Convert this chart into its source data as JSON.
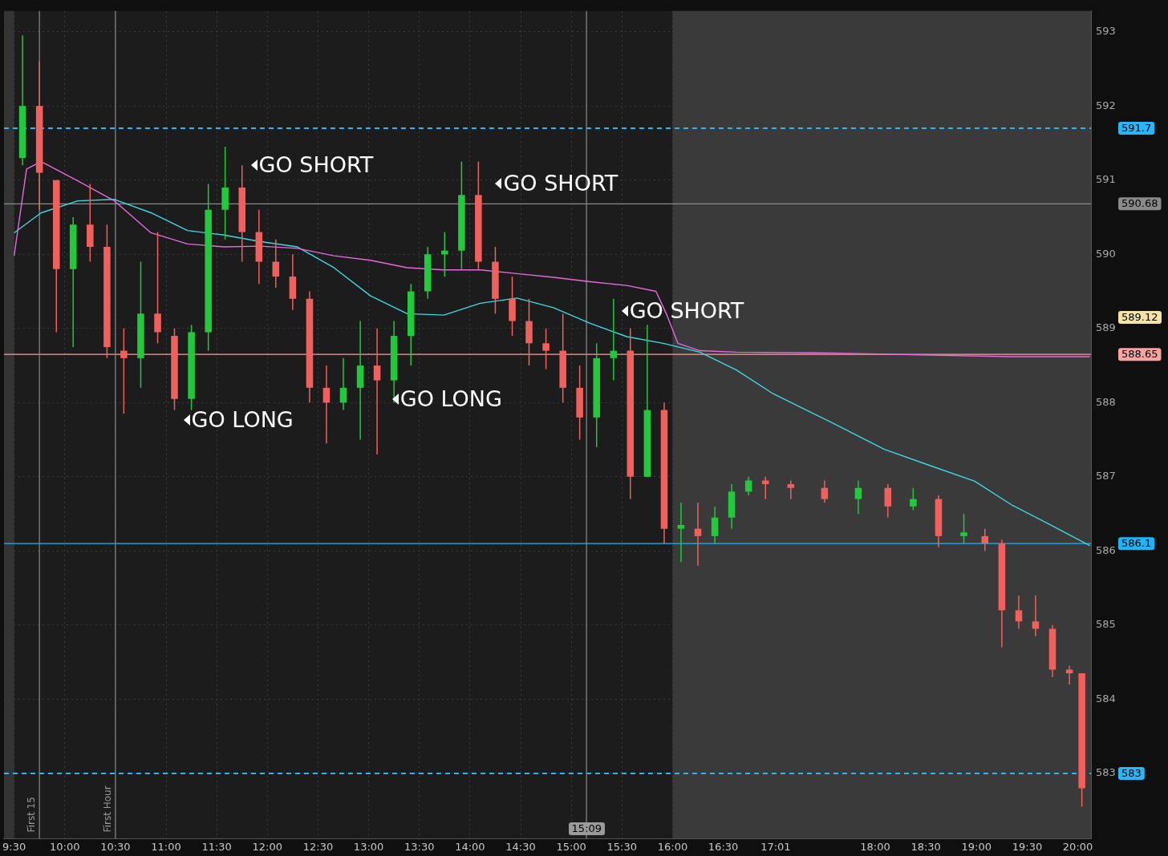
{
  "chart_data": {
    "type": "candlestick",
    "x": [
      9.583,
      9.75,
      9.917,
      10.083,
      10.25,
      10.417,
      10.583,
      10.75,
      10.917,
      11.083,
      11.25,
      11.417,
      11.583,
      11.75,
      11.917,
      12.083,
      12.25,
      12.417,
      12.583,
      12.75,
      12.917,
      13.083,
      13.25,
      13.417,
      13.583,
      13.75,
      13.917,
      14.083,
      14.25,
      14.417,
      14.583,
      14.75,
      14.917,
      15.083,
      15.25,
      15.417,
      15.583,
      15.75,
      15.917,
      16.083,
      16.25,
      16.417,
      16.583,
      16.75,
      16.917,
      17.167,
      17.5,
      17.833,
      18.125,
      18.375,
      18.625,
      18.875,
      19.083,
      19.25,
      19.417,
      19.583,
      19.75,
      19.917,
      20.04
    ],
    "ohlc": [
      [
        591.3,
        592.95,
        591.2,
        592.0
      ],
      [
        592.0,
        592.6,
        590.6,
        591.1
      ],
      [
        591.0,
        591.0,
        588.95,
        589.8
      ],
      [
        589.8,
        590.5,
        588.75,
        590.4
      ],
      [
        590.4,
        590.95,
        589.9,
        590.1
      ],
      [
        590.1,
        590.4,
        588.6,
        588.75
      ],
      [
        588.7,
        589.0,
        587.85,
        588.6
      ],
      [
        588.6,
        589.9,
        588.2,
        589.2
      ],
      [
        589.2,
        590.3,
        588.8,
        588.95
      ],
      [
        588.9,
        589.0,
        587.9,
        588.05
      ],
      [
        588.05,
        589.05,
        587.9,
        588.95
      ],
      [
        588.95,
        590.95,
        588.7,
        590.6
      ],
      [
        590.6,
        591.45,
        590.2,
        590.9
      ],
      [
        590.9,
        591.2,
        589.9,
        590.3
      ],
      [
        590.3,
        590.6,
        589.6,
        589.9
      ],
      [
        589.9,
        590.2,
        589.55,
        589.7
      ],
      [
        589.7,
        590.0,
        589.25,
        589.4
      ],
      [
        589.4,
        589.5,
        588.0,
        588.2
      ],
      [
        588.2,
        588.5,
        587.45,
        588.0
      ],
      [
        588.0,
        588.6,
        587.9,
        588.2
      ],
      [
        588.2,
        589.1,
        587.5,
        588.5
      ],
      [
        588.5,
        589.0,
        587.3,
        588.3
      ],
      [
        588.3,
        589.1,
        588.0,
        588.9
      ],
      [
        588.9,
        589.6,
        588.5,
        589.5
      ],
      [
        589.5,
        590.1,
        589.4,
        590.0
      ],
      [
        590.0,
        590.3,
        589.7,
        590.05
      ],
      [
        590.05,
        591.25,
        589.8,
        590.8
      ],
      [
        590.8,
        591.25,
        589.8,
        589.9
      ],
      [
        589.9,
        590.1,
        589.2,
        589.4
      ],
      [
        589.4,
        589.7,
        588.9,
        589.1
      ],
      [
        589.1,
        589.4,
        588.5,
        588.8
      ],
      [
        588.8,
        589.0,
        588.45,
        588.7
      ],
      [
        588.7,
        589.2,
        588.0,
        588.2
      ],
      [
        588.2,
        588.5,
        587.5,
        587.8
      ],
      [
        587.8,
        588.8,
        587.4,
        588.6
      ],
      [
        588.6,
        589.4,
        588.3,
        588.7
      ],
      [
        588.7,
        589.0,
        586.7,
        587.0
      ],
      [
        587.0,
        589.05,
        587.0,
        587.9
      ],
      [
        587.9,
        588.0,
        586.1,
        586.3
      ],
      [
        586.3,
        586.65,
        585.85,
        586.35
      ],
      [
        586.3,
        586.65,
        585.8,
        586.2
      ],
      [
        586.2,
        586.6,
        586.1,
        586.45
      ],
      [
        586.45,
        586.9,
        586.3,
        586.8
      ],
      [
        586.8,
        587.0,
        586.75,
        586.95
      ],
      [
        586.95,
        587.0,
        586.7,
        586.9
      ],
      [
        586.9,
        586.95,
        586.7,
        586.85
      ],
      [
        586.85,
        586.95,
        586.65,
        586.7
      ],
      [
        586.7,
        586.95,
        586.5,
        586.85
      ],
      [
        586.85,
        586.9,
        586.45,
        586.6
      ],
      [
        586.6,
        586.85,
        586.55,
        586.7
      ],
      [
        586.7,
        586.75,
        586.05,
        586.2
      ],
      [
        586.2,
        586.5,
        586.1,
        586.25
      ],
      [
        586.2,
        586.3,
        586.0,
        586.1
      ],
      [
        586.1,
        586.15,
        584.7,
        585.2
      ],
      [
        585.2,
        585.4,
        584.95,
        585.05
      ],
      [
        585.05,
        585.4,
        584.85,
        584.95
      ],
      [
        584.95,
        585.0,
        584.3,
        584.4
      ],
      [
        584.4,
        584.45,
        584.2,
        584.35
      ],
      [
        584.35,
        584.35,
        582.55,
        582.8
      ]
    ],
    "colors": [
      "#22c93c",
      "#f0605d",
      "#f0605d",
      "#22c93c",
      "#f0605d",
      "#f0605d",
      "#f0605d",
      "#22c93c",
      "#f0605d",
      "#f0605d",
      "#22c93c",
      "#22c93c",
      "#22c93c",
      "#f0605d",
      "#f0605d",
      "#f0605d",
      "#f0605d",
      "#f0605d",
      "#f0605d",
      "#22c93c",
      "#22c93c",
      "#f0605d",
      "#22c93c",
      "#22c93c",
      "#22c93c",
      "#22c93c",
      "#22c93c",
      "#f0605d",
      "#f0605d",
      "#f0605d",
      "#f0605d",
      "#f0605d",
      "#f0605d",
      "#f0605d",
      "#22c93c",
      "#22c93c",
      "#f0605d",
      "#22c93c",
      "#f0605d",
      "#22c93c",
      "#f0605d",
      "#22c93c",
      "#22c93c",
      "#22c93c",
      "#f0605d",
      "#f0605d",
      "#f0605d",
      "#22c93c",
      "#f0605d",
      "#22c93c",
      "#f0605d",
      "#22c93c",
      "#f0605d",
      "#f0605d",
      "#f0605d",
      "#f0605d",
      "#f0605d",
      "#f0605d",
      "#f0605d"
    ],
    "series": [
      {
        "type": "line",
        "color": "#e868e0",
        "x": [
          9.5,
          9.623,
          9.767,
          10.128,
          10.49,
          10.851,
          11.212,
          11.573,
          11.935,
          12.296,
          12.657,
          13.018,
          13.38,
          13.741,
          14.102,
          14.463,
          14.824,
          15.186,
          15.547,
          15.836,
          15.944,
          16.052,
          16.269,
          16.63,
          17.558,
          18.544,
          19.348,
          20.12
        ],
        "values": [
          589.98,
          591.15,
          591.25,
          590.99,
          590.72,
          590.29,
          590.14,
          590.1,
          590.11,
          590.08,
          589.98,
          589.92,
          589.82,
          589.79,
          589.79,
          589.74,
          589.69,
          589.63,
          589.58,
          589.5,
          589.18,
          588.8,
          588.7,
          588.68,
          588.67,
          588.64,
          588.62,
          588.62
        ]
      },
      {
        "type": "line",
        "color": "#3fd8e0",
        "x": [
          9.5,
          9.767,
          10.128,
          10.49,
          10.851,
          11.212,
          11.573,
          11.935,
          12.296,
          12.657,
          13.018,
          13.38,
          13.741,
          14.102,
          14.463,
          14.824,
          15.186,
          15.547,
          15.908,
          16.269,
          16.63,
          16.992,
          17.558,
          18.09,
          18.544,
          18.982,
          19.348,
          19.734,
          20.12
        ],
        "values": [
          590.29,
          590.56,
          590.72,
          590.74,
          590.56,
          590.32,
          590.26,
          590.17,
          590.1,
          589.82,
          589.44,
          589.2,
          589.18,
          589.34,
          589.41,
          589.28,
          589.07,
          588.89,
          588.8,
          588.68,
          588.44,
          588.12,
          587.74,
          587.37,
          587.15,
          586.94,
          586.62,
          586.35,
          586.07
        ]
      }
    ],
    "xlim": [
      9.4,
      20.13
    ],
    "ylim": [
      582.12,
      593.28
    ],
    "xticks": [
      {
        "value": 9.5,
        "label": "9:30"
      },
      {
        "value": 10,
        "label": "10:00"
      },
      {
        "value": 10.5,
        "label": "10:30"
      },
      {
        "value": 11,
        "label": "11:00"
      },
      {
        "value": 11.5,
        "label": "11:30"
      },
      {
        "value": 12,
        "label": "12:00"
      },
      {
        "value": 12.5,
        "label": "12:30"
      },
      {
        "value": 13,
        "label": "13:00"
      },
      {
        "value": 13.5,
        "label": "13:30"
      },
      {
        "value": 14,
        "label": "14:00"
      },
      {
        "value": 14.5,
        "label": "14:30"
      },
      {
        "value": 15,
        "label": "15:00"
      },
      {
        "value": 15.5,
        "label": "15:30"
      },
      {
        "value": 16,
        "label": "16:00"
      },
      {
        "value": 16.5,
        "label": "16:30"
      },
      {
        "value": 17.017,
        "label": "17:01"
      },
      {
        "value": 18,
        "label": "18:00"
      },
      {
        "value": 18.5,
        "label": "18:30"
      },
      {
        "value": 19,
        "label": "19:00"
      },
      {
        "value": 19.5,
        "label": "19:30"
      },
      {
        "value": 20,
        "label": "20:00"
      }
    ],
    "yticks": [
      583,
      584,
      585,
      586,
      587,
      588,
      589,
      590,
      591,
      592,
      593
    ],
    "grid": true,
    "legend": false,
    "bands": [
      {
        "axis": "x",
        "from": 9.4,
        "to": 9.5,
        "color": "#333333"
      },
      {
        "axis": "x",
        "from": 16,
        "to": 20.13,
        "color": "#3a3a3a"
      }
    ],
    "ref_lines": [
      {
        "axis": "y",
        "value": 591.7,
        "label": "591.7",
        "color": "#29b6f6",
        "line_style": "dashed"
      },
      {
        "axis": "y",
        "value": 590.68,
        "label": "590.68",
        "color": "#8a8a8a",
        "line_style": "solid"
      },
      {
        "axis": "y",
        "value": 588.65,
        "label": "588.65",
        "color": "#f5a3a3",
        "line_style": "solid"
      },
      {
        "axis": "y",
        "value": 586.1,
        "label": "586.1",
        "color": "#1eb4f5",
        "line_style": "solid"
      },
      {
        "axis": "y",
        "value": 583,
        "label": "583",
        "color": "#29b6f6",
        "line_style": "dashed"
      },
      {
        "axis": "x",
        "value": 9.75,
        "label": "First 15",
        "color": "#8a8a8a",
        "line_style": "solid"
      },
      {
        "axis": "x",
        "value": 10.5,
        "label": "First Hour",
        "color": "#8a8a8a",
        "line_style": "solid"
      },
      {
        "axis": "x",
        "value": 15.15,
        "color": "#8a8a8a",
        "line_style": "solid"
      }
    ],
    "annotations": [
      "GO SHORT",
      "GO SHORT",
      "GO SHORT",
      "GO LONG",
      "GO LONG",
      "589.12",
      "15:09"
    ]
  }
}
